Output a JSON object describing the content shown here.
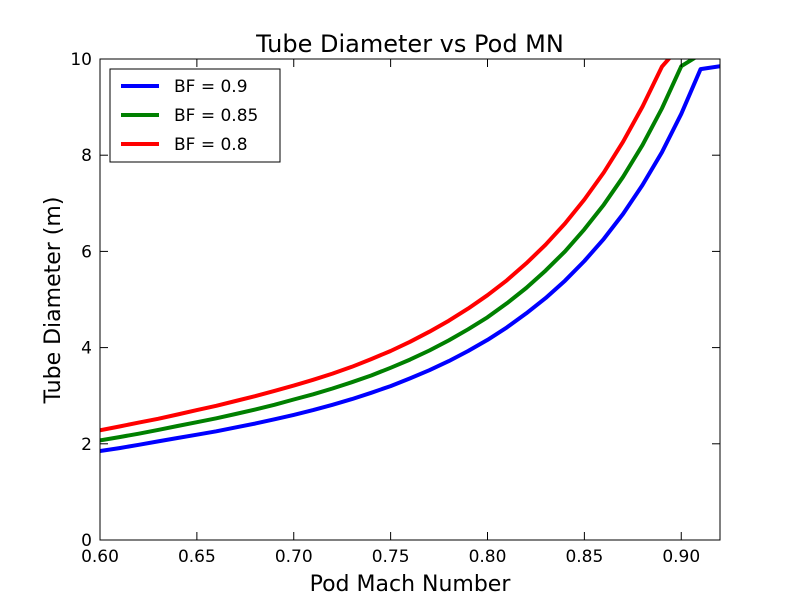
{
  "chart_data": {
    "type": "line",
    "title": "Tube Diameter vs Pod MN",
    "xlabel": "Pod Mach Number",
    "ylabel": "Tube Diameter (m)",
    "xlim": [
      0.6,
      0.92
    ],
    "ylim": [
      0,
      10
    ],
    "xticks": [
      "0.60",
      "0.65",
      "0.70",
      "0.75",
      "0.80",
      "0.85",
      "0.90"
    ],
    "xtick_values": [
      0.6,
      0.65,
      0.7,
      0.75,
      0.8,
      0.85,
      0.9
    ],
    "yticks": [
      "0",
      "2",
      "4",
      "6",
      "8",
      "10"
    ],
    "ytick_values": [
      0,
      2,
      4,
      6,
      8,
      10
    ],
    "grid": false,
    "legend_position": "top-left",
    "x": [
      0.6,
      0.61,
      0.62,
      0.63,
      0.64,
      0.65,
      0.66,
      0.67,
      0.68,
      0.69,
      0.7,
      0.71,
      0.72,
      0.73,
      0.74,
      0.75,
      0.76,
      0.77,
      0.78,
      0.79,
      0.8,
      0.81,
      0.82,
      0.83,
      0.84,
      0.85,
      0.86,
      0.87,
      0.88,
      0.89,
      0.9,
      0.91,
      0.92
    ],
    "series": [
      {
        "name": "BF = 0.9",
        "color": "#0000ff",
        "values": [
          1.85,
          1.91,
          1.98,
          2.05,
          2.12,
          2.19,
          2.26,
          2.34,
          2.42,
          2.51,
          2.6,
          2.7,
          2.81,
          2.93,
          3.06,
          3.2,
          3.36,
          3.53,
          3.72,
          3.93,
          4.16,
          4.42,
          4.71,
          5.03,
          5.39,
          5.8,
          6.26,
          6.78,
          7.38,
          8.06,
          8.86,
          9.79,
          9.85
        ]
      },
      {
        "name": "BF = 0.85",
        "color": "#008000",
        "values": [
          2.07,
          2.14,
          2.21,
          2.29,
          2.37,
          2.45,
          2.53,
          2.62,
          2.71,
          2.81,
          2.92,
          3.03,
          3.15,
          3.28,
          3.42,
          3.58,
          3.75,
          3.94,
          4.15,
          4.38,
          4.63,
          4.92,
          5.24,
          5.6,
          6.0,
          6.46,
          6.97,
          7.55,
          8.21,
          8.97,
          9.85,
          10.1,
          null
        ]
      },
      {
        "name": "BF = 0.8",
        "color": "#ff0000",
        "values": [
          2.28,
          2.36,
          2.44,
          2.52,
          2.61,
          2.7,
          2.79,
          2.89,
          2.99,
          3.1,
          3.21,
          3.33,
          3.46,
          3.6,
          3.76,
          3.93,
          4.12,
          4.33,
          4.56,
          4.81,
          5.09,
          5.4,
          5.75,
          6.14,
          6.58,
          7.08,
          7.64,
          8.28,
          9.01,
          9.84,
          10.3,
          null,
          null
        ]
      }
    ]
  }
}
